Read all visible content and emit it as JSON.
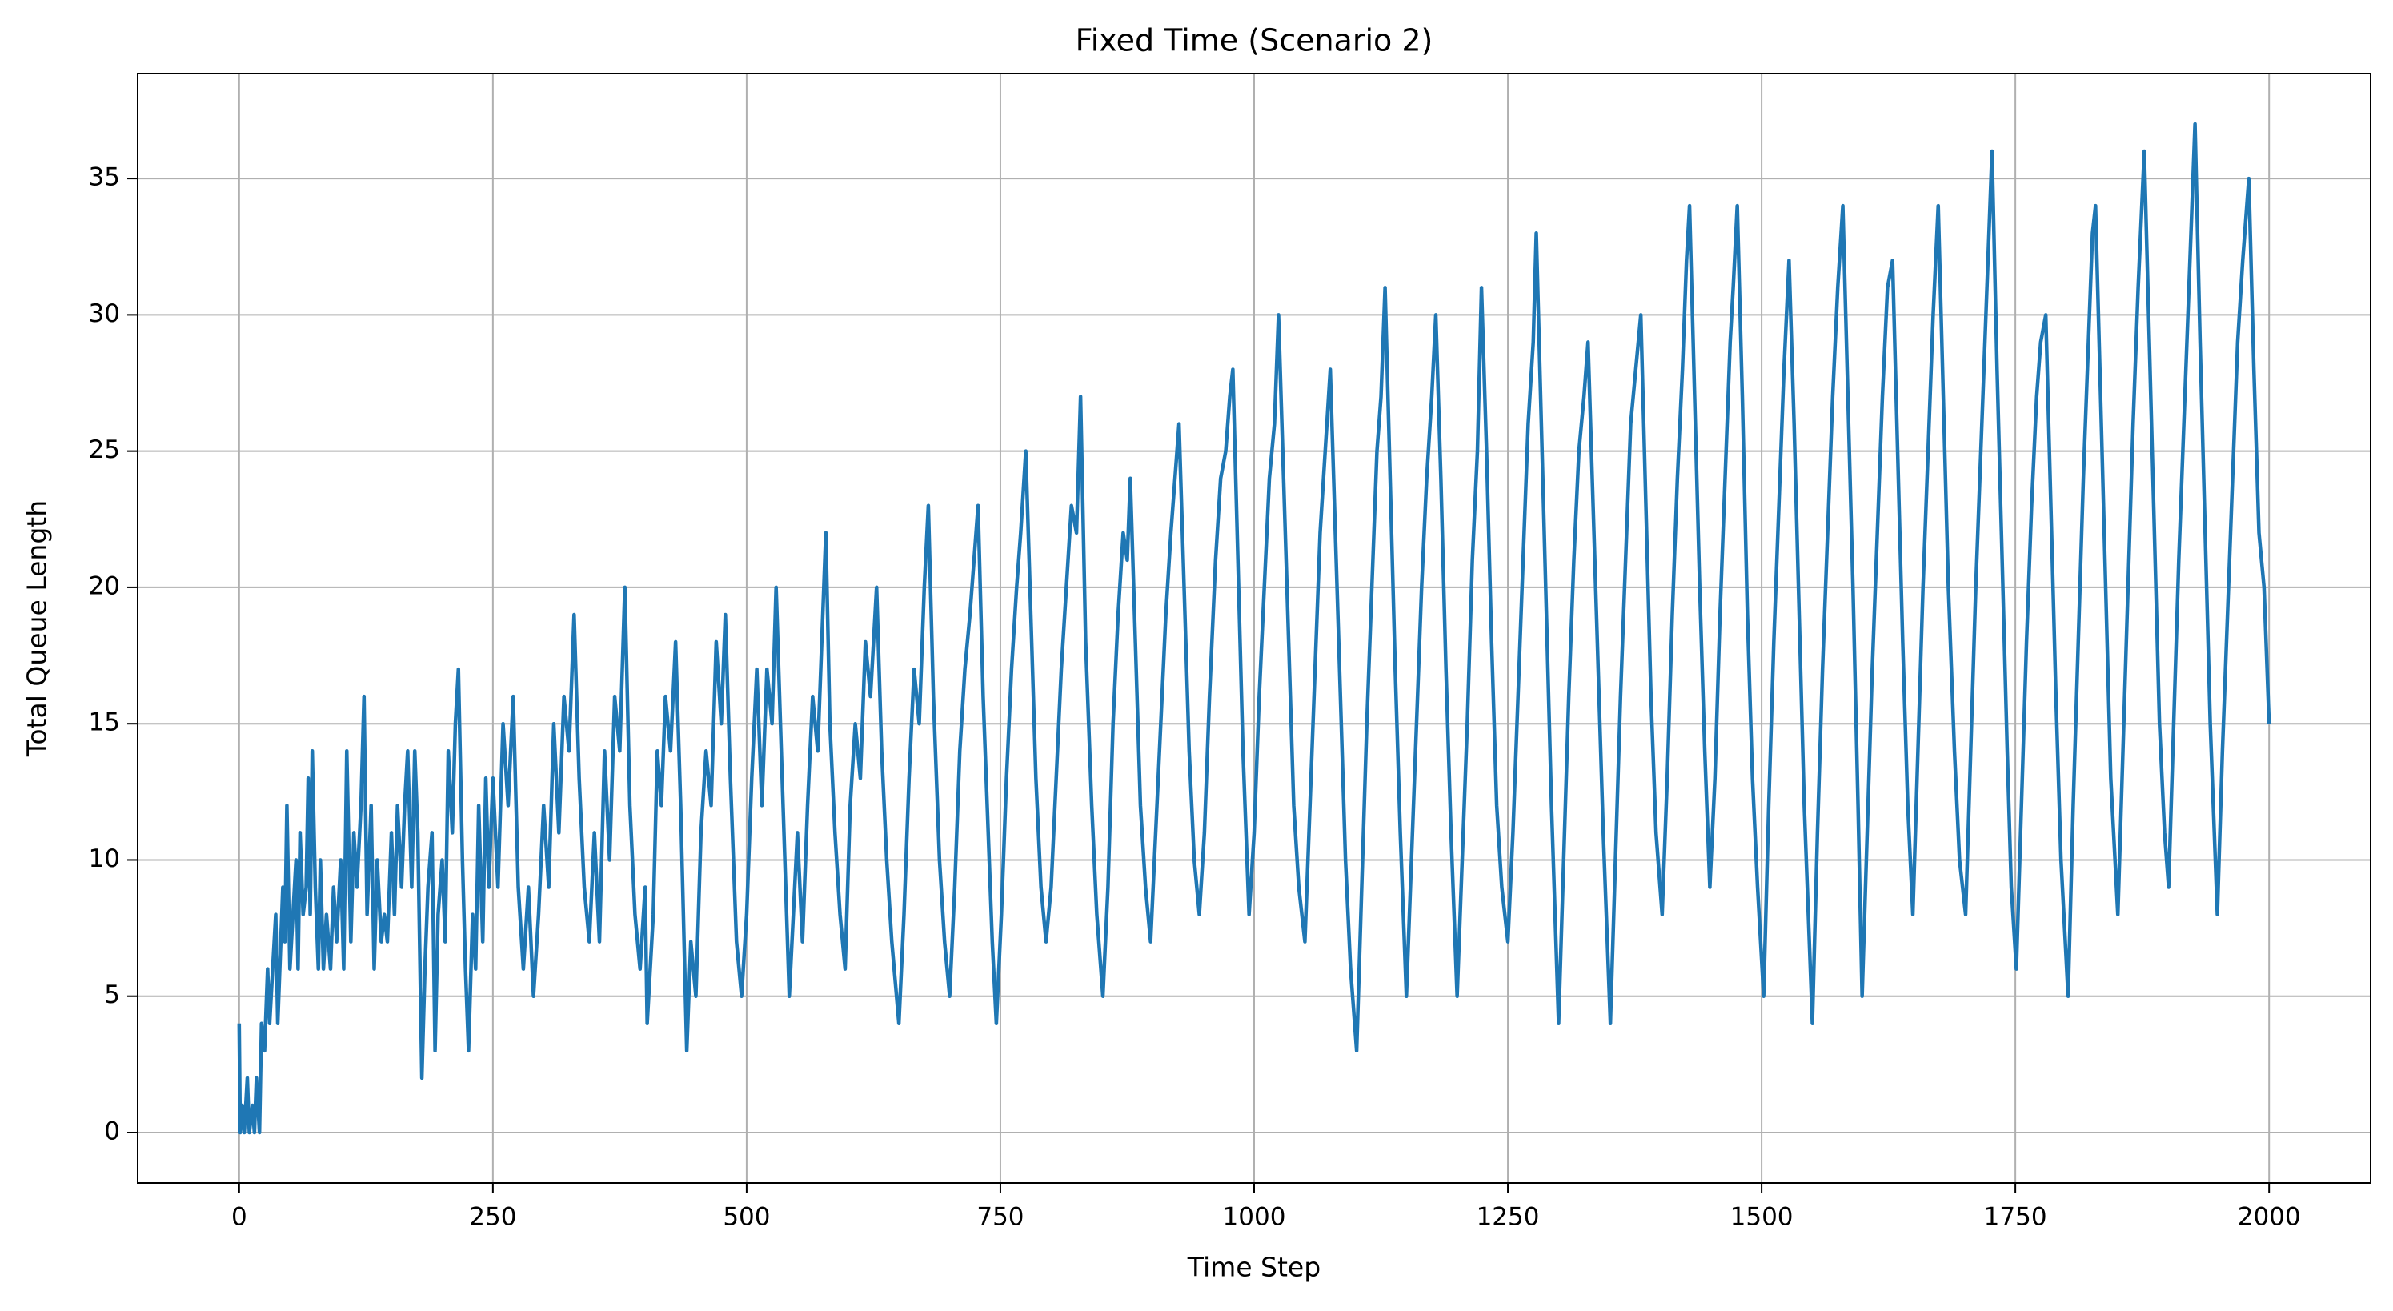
{
  "chart_data": {
    "type": "line",
    "title": "Fixed Time (Scenario 2)",
    "x_label": "Time Step",
    "y_label": "Total Queue Length",
    "color": "#1f77b4",
    "grid": true,
    "xlim": [
      -100,
      2100
    ],
    "xticks": [
      0,
      250,
      500,
      750,
      1000,
      1250,
      1500,
      1750,
      2000
    ],
    "ylim": [
      -1.85,
      38.85
    ],
    "yticks": [
      0,
      5,
      10,
      15,
      20,
      25,
      30,
      35
    ],
    "x": [
      0,
      1,
      3,
      5,
      8,
      10,
      13,
      15,
      17,
      20,
      22,
      25,
      28,
      30,
      33,
      36,
      38,
      40,
      43,
      45,
      47,
      50,
      53,
      56,
      58,
      60,
      63,
      66,
      68,
      70,
      72,
      75,
      78,
      80,
      83,
      86,
      90,
      93,
      96,
      100,
      103,
      106,
      110,
      113,
      116,
      120,
      123,
      126,
      130,
      133,
      136,
      140,
      143,
      146,
      150,
      153,
      156,
      160,
      163,
      166,
      170,
      173,
      176,
      180,
      183,
      186,
      190,
      193,
      196,
      200,
      203,
      206,
      210,
      213,
      216,
      220,
      223,
      226,
      230,
      233,
      236,
      240,
      243,
      246,
      250,
      255,
      260,
      265,
      270,
      275,
      280,
      285,
      290,
      295,
      300,
      305,
      310,
      315,
      320,
      325,
      330,
      335,
      340,
      345,
      350,
      355,
      360,
      365,
      370,
      375,
      380,
      385,
      390,
      395,
      400,
      402,
      408,
      412,
      416,
      420,
      425,
      430,
      435,
      441,
      445,
      450,
      455,
      460,
      465,
      470,
      475,
      479,
      484,
      490,
      495,
      500,
      505,
      510,
      515,
      520,
      525,
      529,
      535,
      542,
      546,
      550,
      555,
      560,
      565,
      570,
      574,
      578,
      582,
      587,
      592,
      597,
      602,
      607,
      612,
      617,
      622,
      628,
      633,
      638,
      643,
      650,
      655,
      660,
      665,
      670,
      675,
      679,
      684,
      690,
      695,
      700,
      705,
      710,
      715,
      720,
      724,
      728,
      733,
      738,
      742,
      746,
      751,
      756,
      761,
      766,
      770,
      775,
      780,
      785,
      790,
      795,
      800,
      805,
      810,
      815,
      820,
      825,
      829,
      834,
      840,
      845,
      851,
      856,
      861,
      866,
      871,
      875,
      878,
      883,
      888,
      893,
      898,
      903,
      908,
      913,
      918,
      922,
      926,
      931,
      936,
      941,
      946,
      951,
      956,
      962,
      967,
      972,
      976,
      979,
      984,
      989,
      995,
      1000,
      1005,
      1010,
      1015,
      1020,
      1024,
      1029,
      1034,
      1039,
      1044,
      1050,
      1055,
      1060,
      1065,
      1070,
      1075,
      1080,
      1085,
      1090,
      1095,
      1101,
      1106,
      1111,
      1116,
      1121,
      1125,
      1129,
      1134,
      1139,
      1144,
      1150,
      1155,
      1160,
      1165,
      1170,
      1175,
      1179,
      1184,
      1189,
      1194,
      1200,
      1205,
      1210,
      1215,
      1220,
      1224,
      1229,
      1234,
      1239,
      1244,
      1250,
      1255,
      1260,
      1265,
      1270,
      1275,
      1278,
      1283,
      1288,
      1293,
      1300,
      1305,
      1310,
      1315,
      1320,
      1325,
      1329,
      1334,
      1339,
      1344,
      1351,
      1356,
      1361,
      1366,
      1371,
      1376,
      1381,
      1386,
      1391,
      1396,
      1402,
      1407,
      1412,
      1417,
      1422,
      1426,
      1429,
      1434,
      1439,
      1444,
      1449,
      1454,
      1459,
      1464,
      1469,
      1472,
      1476,
      1481,
      1486,
      1491,
      1496,
      1502,
      1507,
      1512,
      1517,
      1522,
      1527,
      1532,
      1537,
      1542,
      1550,
      1555,
      1560,
      1565,
      1570,
      1575,
      1580,
      1585,
      1590,
      1595,
      1599,
      1604,
      1609,
      1614,
      1619,
      1624,
      1629,
      1634,
      1639,
      1644,
      1649,
      1654,
      1659,
      1664,
      1669,
      1674,
      1679,
      1684,
      1690,
      1695,
      1701,
      1706,
      1711,
      1716,
      1721,
      1727,
      1732,
      1737,
      1742,
      1746,
      1751,
      1756,
      1761,
      1766,
      1771,
      1775,
      1780,
      1785,
      1790,
      1795,
      1802,
      1807,
      1812,
      1817,
      1822,
      1826,
      1829,
      1834,
      1839,
      1844,
      1851,
      1856,
      1861,
      1866,
      1871,
      1877,
      1882,
      1887,
      1892,
      1897,
      1901,
      1906,
      1911,
      1916,
      1921,
      1927,
      1932,
      1937,
      1942,
      1949,
      1954,
      1959,
      1964,
      1969,
      1974,
      1980,
      1985,
      1990,
      1995,
      2000
    ],
    "values": [
      4,
      0,
      1,
      0,
      2,
      0,
      1,
      0,
      2,
      0,
      4,
      3,
      6,
      4,
      6,
      8,
      4,
      6,
      9,
      7,
      12,
      6,
      8,
      10,
      6,
      11,
      8,
      9,
      13,
      8,
      14,
      9,
      6,
      10,
      6,
      8,
      6,
      9,
      7,
      10,
      6,
      14,
      7,
      11,
      9,
      12,
      16,
      8,
      12,
      6,
      10,
      7,
      8,
      7,
      11,
      8,
      12,
      9,
      12,
      14,
      9,
      14,
      11,
      2,
      6,
      9,
      11,
      3,
      8,
      10,
      7,
      14,
      11,
      15,
      17,
      10,
      6,
      3,
      8,
      6,
      12,
      7,
      13,
      9,
      13,
      9,
      15,
      12,
      16,
      9,
      6,
      9,
      5,
      8,
      12,
      9,
      15,
      11,
      16,
      14,
      19,
      13,
      9,
      7,
      11,
      7,
      14,
      10,
      16,
      14,
      20,
      12,
      8,
      6,
      9,
      4,
      8,
      14,
      12,
      16,
      14,
      18,
      12,
      3,
      7,
      5,
      11,
      14,
      12,
      18,
      15,
      19,
      13,
      7,
      5,
      8,
      13,
      17,
      12,
      17,
      15,
      20,
      13,
      5,
      8,
      11,
      7,
      12,
      16,
      14,
      18,
      22,
      15,
      11,
      8,
      6,
      12,
      15,
      13,
      18,
      16,
      20,
      14,
      10,
      7,
      4,
      8,
      13,
      17,
      15,
      20,
      23,
      16,
      10,
      7,
      5,
      9,
      14,
      17,
      19,
      21,
      23,
      16,
      11,
      7,
      4,
      8,
      13,
      17,
      20,
      22,
      25,
      19,
      13,
      9,
      7,
      9,
      13,
      17,
      20,
      23,
      22,
      27,
      18,
      12,
      8,
      5,
      9,
      15,
      19,
      22,
      21,
      24,
      18,
      12,
      9,
      7,
      11,
      15,
      19,
      22,
      24,
      26,
      20,
      14,
      10,
      8,
      11,
      16,
      21,
      24,
      25,
      27,
      28,
      21,
      14,
      8,
      11,
      16,
      20,
      24,
      26,
      30,
      24,
      18,
      12,
      9,
      7,
      12,
      17,
      22,
      25,
      28,
      22,
      16,
      10,
      6,
      3,
      9,
      15,
      20,
      25,
      27,
      31,
      24,
      17,
      11,
      5,
      10,
      15,
      20,
      24,
      27,
      30,
      24,
      17,
      11,
      5,
      10,
      15,
      21,
      25,
      31,
      25,
      18,
      12,
      9,
      7,
      11,
      16,
      21,
      26,
      29,
      33,
      26,
      19,
      12,
      4,
      10,
      16,
      21,
      25,
      27,
      29,
      23,
      17,
      11,
      4,
      10,
      16,
      21,
      26,
      28,
      30,
      23,
      16,
      11,
      8,
      13,
      19,
      24,
      28,
      32,
      34,
      27,
      20,
      14,
      9,
      13,
      19,
      24,
      29,
      31,
      34,
      27,
      19,
      13,
      9,
      5,
      12,
      18,
      23,
      28,
      32,
      26,
      19,
      12,
      4,
      11,
      17,
      22,
      27,
      31,
      34,
      27,
      20,
      12,
      5,
      11,
      17,
      22,
      27,
      31,
      32,
      25,
      18,
      12,
      8,
      14,
      20,
      25,
      30,
      34,
      27,
      20,
      14,
      10,
      8,
      14,
      20,
      25,
      30,
      36,
      28,
      21,
      14,
      9,
      6,
      12,
      18,
      23,
      27,
      29,
      30,
      23,
      16,
      10,
      5,
      12,
      18,
      24,
      29,
      33,
      34,
      27,
      20,
      13,
      8,
      14,
      20,
      26,
      31,
      36,
      29,
      22,
      15,
      11,
      9,
      15,
      21,
      26,
      31,
      37,
      29,
      22,
      15,
      8,
      14,
      19,
      24,
      29,
      32,
      35,
      28,
      22,
      20,
      15
    ]
  }
}
